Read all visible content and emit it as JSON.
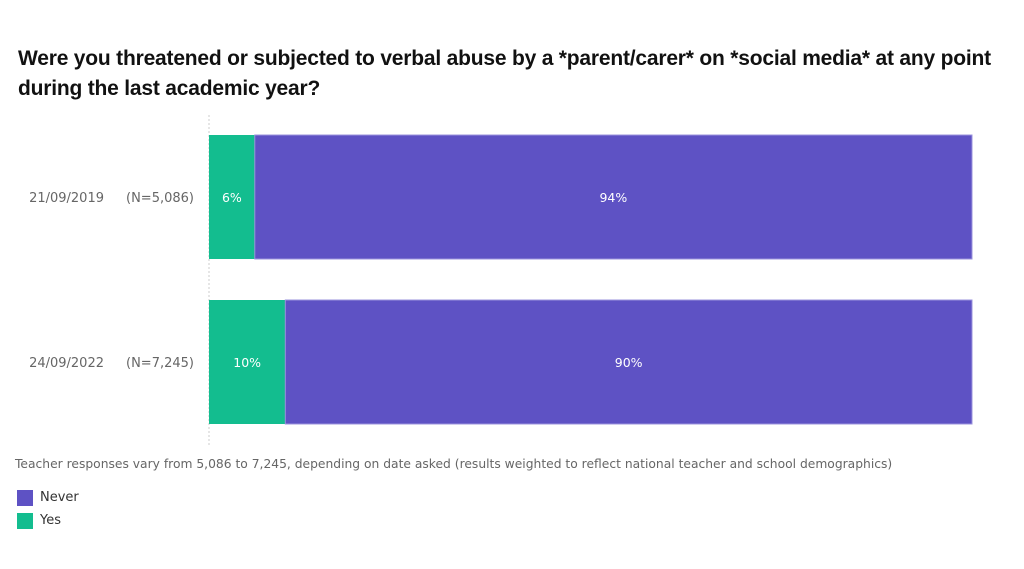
{
  "chart_data": {
    "type": "bar",
    "orientation": "horizontal",
    "stacked": true,
    "title": "Were you threatened or subjected to verbal abuse by a *parent/carer* on *social media* at any point during the last academic year?",
    "categories": [
      {
        "date": "21/09/2019",
        "n": "(N=5,086)"
      },
      {
        "date": "24/09/2022",
        "n": "(N=7,245)"
      }
    ],
    "series": [
      {
        "name": "Yes",
        "color": "#13bd8f",
        "values": [
          6,
          10
        ],
        "labels": [
          "6%",
          "10%"
        ]
      },
      {
        "name": "Never",
        "color": "#5e52c4",
        "values": [
          94,
          90
        ],
        "labels": [
          "94%",
          "90%"
        ]
      }
    ],
    "xlim": [
      0,
      100
    ],
    "unit": "%",
    "grid": false,
    "legend": {
      "placement": "bottom-left",
      "items": [
        {
          "name": "Never",
          "color": "#5e52c4"
        },
        {
          "name": "Yes",
          "color": "#13bd8f"
        }
      ]
    },
    "footnote": "Teacher responses vary from 5,086 to 7,245, depending on date asked (results weighted to reflect national teacher and school demographics)"
  }
}
